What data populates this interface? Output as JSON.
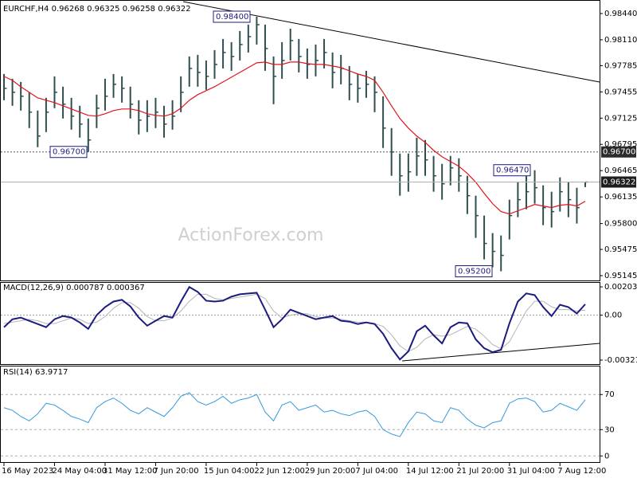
{
  "chart_data": {
    "type": "ohlc",
    "title": "EURCHF,H4",
    "last_open": 0.96268,
    "watermark": "ActionForex.com",
    "categories": [
      "16 May 2023",
      null,
      null,
      null,
      null,
      null,
      "24 May 04:00",
      null,
      null,
      null,
      null,
      null,
      "31 May 12:00",
      null,
      null,
      null,
      null,
      null,
      "7 Jun 20:00",
      null,
      null,
      null,
      null,
      null,
      "15 Jun 04:00",
      null,
      null,
      null,
      null,
      null,
      "22 Jun 12:00",
      null,
      null,
      null,
      null,
      null,
      "29 Jun 20:00",
      null,
      null,
      null,
      null,
      null,
      "7 Jul 04:00",
      null,
      null,
      null,
      null,
      null,
      "14 Jul 12:00",
      null,
      null,
      null,
      null,
      null,
      "21 Jul 20:00",
      null,
      null,
      null,
      null,
      null,
      "31 Jul 04:00",
      null,
      null,
      null,
      null,
      null,
      "7 Aug 12:00",
      null,
      null,
      null
    ],
    "ohlc": {
      "color": "#2f4f4f",
      "high": [
        0.9768,
        0.9762,
        0.9758,
        0.9745,
        0.9722,
        0.9738,
        0.9765,
        0.9752,
        0.9738,
        0.9728,
        0.9712,
        0.9742,
        0.9762,
        0.9768,
        0.9765,
        0.9752,
        0.9735,
        0.9735,
        0.9738,
        0.9728,
        0.9735,
        0.9765,
        0.979,
        0.9792,
        0.9785,
        0.9798,
        0.9812,
        0.9808,
        0.9822,
        0.983,
        0.984,
        0.983,
        0.979,
        0.9808,
        0.9825,
        0.9812,
        0.98,
        0.9805,
        0.9812,
        0.9795,
        0.9792,
        0.9778,
        0.9768,
        0.9772,
        0.9765,
        0.974,
        0.97,
        0.9668,
        0.9668,
        0.9688,
        0.9685,
        0.9665,
        0.9655,
        0.9665,
        0.9662,
        0.964,
        0.9615,
        0.959,
        0.9568,
        0.9565,
        0.961,
        0.9632,
        0.964,
        0.9647,
        0.9628,
        0.962,
        0.9638,
        0.9632,
        0.9625,
        0.96325
      ],
      "low": [
        0.9735,
        0.9728,
        0.9722,
        0.97,
        0.9676,
        0.9695,
        0.9725,
        0.9712,
        0.9698,
        0.9688,
        0.967,
        0.97,
        0.9722,
        0.9738,
        0.9732,
        0.9712,
        0.9692,
        0.9695,
        0.97,
        0.9688,
        0.9698,
        0.972,
        0.9752,
        0.9752,
        0.9748,
        0.9762,
        0.9775,
        0.9772,
        0.9785,
        0.9795,
        0.9805,
        0.9772,
        0.973,
        0.9762,
        0.9785,
        0.977,
        0.9762,
        0.9765,
        0.9775,
        0.975,
        0.9755,
        0.9735,
        0.9732,
        0.9738,
        0.972,
        0.9675,
        0.964,
        0.9615,
        0.962,
        0.964,
        0.964,
        0.962,
        0.961,
        0.9628,
        0.962,
        0.9592,
        0.9562,
        0.9535,
        0.9525,
        0.952,
        0.956,
        0.9588,
        0.9598,
        0.9605,
        0.9578,
        0.9575,
        0.9595,
        0.9588,
        0.958,
        0.96258
      ],
      "close": [
        0.975,
        0.9745,
        0.974,
        0.972,
        0.969,
        0.972,
        0.9745,
        0.973,
        0.9715,
        0.9705,
        0.9685,
        0.9725,
        0.974,
        0.9755,
        0.975,
        0.973,
        0.971,
        0.9715,
        0.972,
        0.9705,
        0.9715,
        0.9745,
        0.9775,
        0.977,
        0.9765,
        0.978,
        0.9795,
        0.979,
        0.9805,
        0.9815,
        0.983,
        0.98,
        0.9765,
        0.9785,
        0.981,
        0.979,
        0.978,
        0.9785,
        0.9795,
        0.977,
        0.9775,
        0.9755,
        0.975,
        0.9755,
        0.9745,
        0.97,
        0.967,
        0.964,
        0.9645,
        0.9665,
        0.966,
        0.964,
        0.963,
        0.965,
        0.964,
        0.9615,
        0.959,
        0.9555,
        0.9545,
        0.954,
        0.959,
        0.961,
        0.962,
        0.9625,
        0.96,
        0.9595,
        0.962,
        0.961,
        0.96,
        0.96322
      ]
    },
    "ma": {
      "color": "#e0141e",
      "values": [
        0.9765,
        0.976,
        0.9752,
        0.9745,
        0.9738,
        0.9735,
        0.9732,
        0.9728,
        0.9724,
        0.972,
        0.9716,
        0.9715,
        0.9718,
        0.9722,
        0.9724,
        0.9724,
        0.9722,
        0.9718,
        0.9716,
        0.9715,
        0.9718,
        0.9725,
        0.9735,
        0.9742,
        0.9747,
        0.9752,
        0.9758,
        0.9764,
        0.977,
        0.9776,
        0.9782,
        0.9783,
        0.978,
        0.978,
        0.9783,
        0.9783,
        0.9781,
        0.978,
        0.978,
        0.9778,
        0.9776,
        0.9772,
        0.9768,
        0.9765,
        0.976,
        0.9745,
        0.9728,
        0.9712,
        0.97,
        0.969,
        0.9682,
        0.9672,
        0.9664,
        0.9658,
        0.9652,
        0.9643,
        0.9632,
        0.9618,
        0.9605,
        0.9595,
        0.9592,
        0.9596,
        0.96,
        0.9604,
        0.9602,
        0.96,
        0.9603,
        0.9604,
        0.9602,
        0.9608
      ]
    },
    "ylim": [
      0.95085,
      0.9859
    ],
    "yticks": [
      {
        "value": 0.9844,
        "label": "0.98440"
      },
      {
        "value": 0.9811,
        "label": "0.98110"
      },
      0.97785,
      0.97455,
      0.97125,
      0.96795,
      0.96465,
      0.96135,
      {
        "value": 0.958,
        "label": "0.95800"
      },
      0.95475,
      0.95145
    ],
    "levels": [
      {
        "value": 0.967,
        "label": "0.96700"
      }
    ],
    "annotations": [
      {
        "value": 0.984,
        "label": "0.98400"
      },
      {
        "value": 0.967,
        "label": "0.96700"
      },
      {
        "value": 0.9647,
        "label": "0.96470"
      },
      {
        "value": 0.952,
        "label": "0.95200"
      }
    ],
    "macd": {
      "title": "MACD(12,26,9)",
      "color": "#1c1c80",
      "signal_color": "#b4b4b4",
      "values": [
        -0.00086,
        -0.00029,
        -0.00017,
        -0.0004,
        -0.00063,
        -0.00086,
        -0.00029,
        -6e-05,
        -0.00017,
        -0.00052,
        -0.00098,
        0,
        0.00058,
        0.00098,
        0.0011,
        0.00063,
        -0.00017,
        -0.00075,
        -0.0004,
        -6e-05,
        -0.00017,
        0.00098,
        0.00202,
        0.00167,
        0.00104,
        0.00098,
        0.00104,
        0.00133,
        0.0015,
        0.00156,
        0.00161,
        0.0004,
        -0.00086,
        -0.00029,
        0.0004,
        0.00017,
        -6e-05,
        -0.00029,
        -0.00017,
        -6e-05,
        -0.0004,
        -0.00046,
        -0.00063,
        -0.00052,
        -0.00063,
        -0.00133,
        -0.00236,
        -0.00317,
        -0.00259,
        -0.00115,
        -0.00075,
        -0.00144,
        -0.00202,
        -0.00086,
        -0.00052,
        -0.00058,
        -0.00173,
        -0.00236,
        -0.00265,
        -0.00248,
        -0.00058,
        0.00098,
        0.00156,
        0.00144,
        0.00058,
        -6e-05,
        0.00075,
        0.00058,
        0.00012,
        0.000787
      ],
      "signal": [
        -0.0006,
        -0.0005,
        -0.0004,
        -0.0003,
        -0.0004,
        -0.0006,
        -0.0006,
        -0.0004,
        -0.0002,
        -0.0003,
        -0.0006,
        -0.0005,
        -0.0001,
        0.0005,
        0.0009,
        0.0009,
        0.0005,
        -0.0001,
        -0.0004,
        -0.0004,
        -0.0002,
        0.0003,
        0.001,
        0.0015,
        0.0015,
        0.0012,
        0.0011,
        0.0012,
        0.0013,
        0.0014,
        0.0015,
        0.0012,
        0.0003,
        -0.0002,
        0,
        0.0001,
        0.0001,
        -0.0001,
        -0.0002,
        -0.0002,
        -0.0003,
        -0.0004,
        -0.0005,
        -0.0005,
        -0.0006,
        -0.0008,
        -0.0014,
        -0.0022,
        -0.0026,
        -0.0023,
        -0.0017,
        -0.0014,
        -0.0015,
        -0.0014,
        -0.0011,
        -0.0008,
        -0.001,
        -0.0015,
        -0.0021,
        -0.0024,
        -0.0019,
        -0.0008,
        0.0003,
        0.001,
        0.001,
        0.0006,
        0.0004,
        0.0004,
        0.0003,
        0.000367
      ],
      "ylim": [
        -0.0035,
        0.00232
      ],
      "yticks": [
        0.002031,
        {
          "value": 0,
          "label": "0.00"
        },
        -0.003214
      ]
    },
    "rsi": {
      "title": "RSI(14)",
      "color": "#3399dd",
      "values": [
        55,
        52,
        45,
        40,
        48,
        60,
        58,
        52,
        45,
        42,
        38,
        55,
        62,
        66,
        60,
        52,
        48,
        55,
        50,
        45,
        55,
        68,
        72,
        62,
        58,
        62,
        68,
        60,
        64,
        66,
        70,
        50,
        40,
        58,
        62,
        52,
        55,
        58,
        50,
        52,
        48,
        46,
        50,
        52,
        45,
        30,
        25,
        22,
        38,
        50,
        48,
        40,
        38,
        55,
        52,
        42,
        35,
        32,
        38,
        40,
        60,
        65,
        66,
        62,
        50,
        52,
        60,
        56,
        52,
        63.9717
      ],
      "ylim": [
        -7,
        102
      ],
      "yticks": [
        70,
        30,
        0
      ]
    }
  }
}
